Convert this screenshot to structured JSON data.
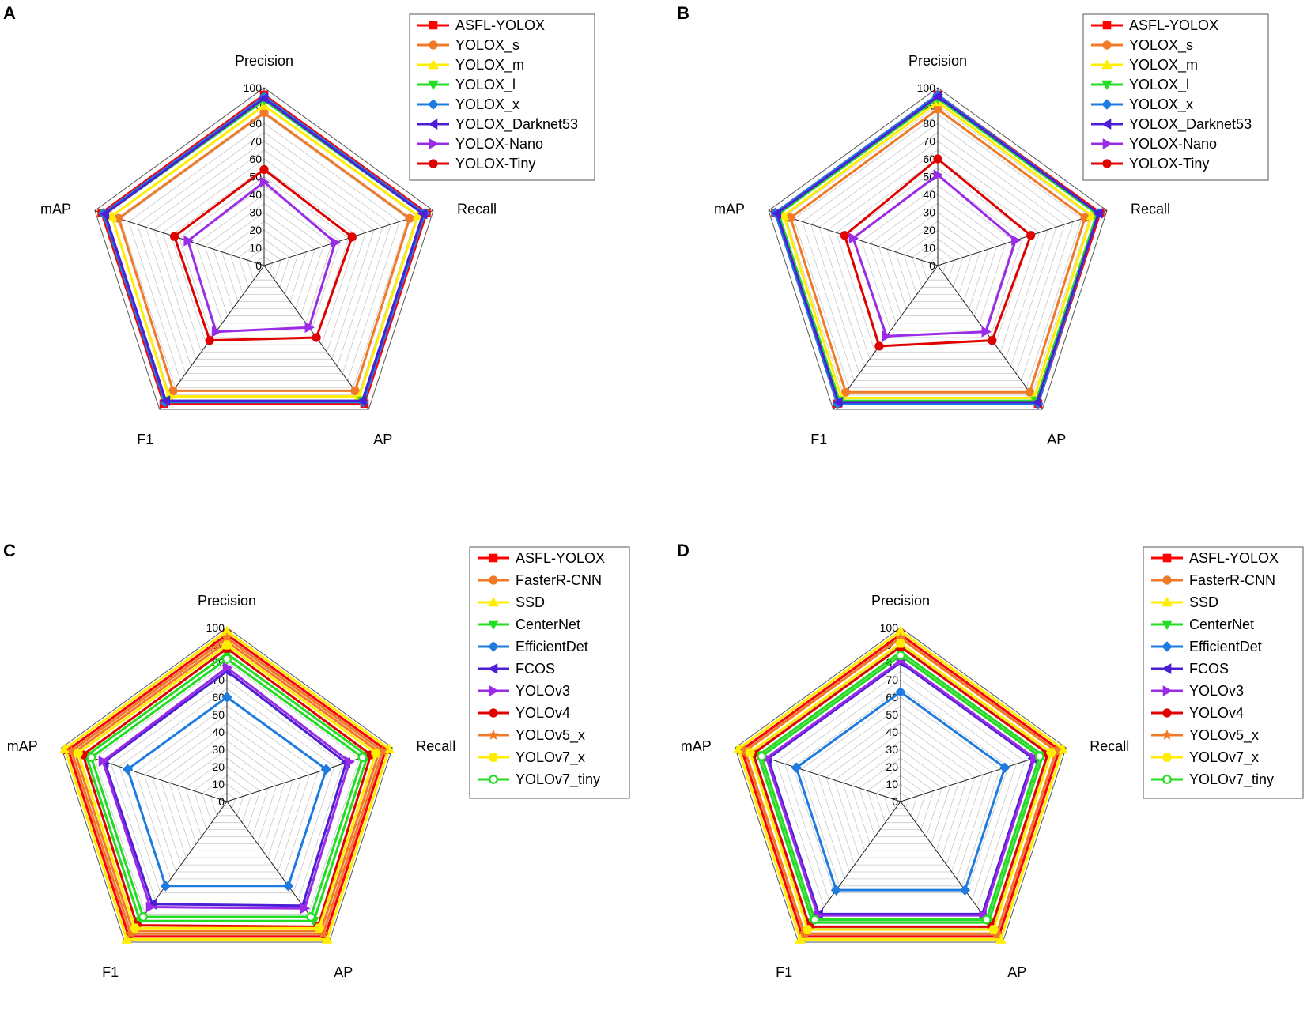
{
  "panels": [
    {
      "letter": "A"
    },
    {
      "letter": "B"
    },
    {
      "letter": "C"
    },
    {
      "letter": "D"
    }
  ],
  "chart_data": [
    {
      "panel": "A",
      "type": "radar",
      "axes": [
        "Precision",
        "Recall",
        "AP",
        "F1",
        "mAP"
      ],
      "ticks": [
        0,
        10,
        20,
        30,
        40,
        50,
        60,
        70,
        80,
        90,
        100
      ],
      "range": [
        0,
        100
      ],
      "grid": true,
      "legend_position": "top-right",
      "series": [
        {
          "name": "ASFL-YOLOX",
          "color": "#ff0000",
          "marker": "square",
          "values": [
            96,
            96,
            96,
            96,
            96
          ]
        },
        {
          "name": "YOLOX_s",
          "color": "#f07a28",
          "marker": "circle",
          "values": [
            86,
            86,
            87,
            87,
            86
          ]
        },
        {
          "name": "YOLOX_m",
          "color": "#ffee00",
          "marker": "triangle-up",
          "values": [
            90,
            91,
            91,
            91,
            90
          ]
        },
        {
          "name": "YOLOX_l",
          "color": "#22dd22",
          "marker": "triangle-down",
          "values": [
            93,
            94,
            94,
            94,
            94
          ]
        },
        {
          "name": "YOLOX_x",
          "color": "#1e7be0",
          "marker": "diamond",
          "values": [
            95,
            95,
            95,
            95,
            95
          ]
        },
        {
          "name": "YOLOX_Darknet53",
          "color": "#4b1fd6",
          "marker": "triangle-left",
          "values": [
            94,
            94,
            94,
            94,
            94
          ]
        },
        {
          "name": "YOLOX-Nano",
          "color": "#9a2be6",
          "marker": "triangle-right",
          "values": [
            47,
            42,
            43,
            46,
            45
          ]
        },
        {
          "name": "YOLOX-Tiny",
          "color": "#e00000",
          "marker": "circle",
          "values": [
            54,
            52,
            50,
            52,
            53
          ]
        }
      ]
    },
    {
      "panel": "B",
      "type": "radar",
      "axes": [
        "Precision",
        "Recall",
        "AP",
        "F1",
        "mAP"
      ],
      "ticks": [
        0,
        10,
        20,
        30,
        40,
        50,
        60,
        70,
        80,
        90,
        100
      ],
      "range": [
        0,
        100
      ],
      "grid": true,
      "legend_position": "top-right",
      "series": [
        {
          "name": "ASFL-YOLOX",
          "color": "#ff0000",
          "marker": "square",
          "values": [
            96,
            96,
            96,
            96,
            96
          ]
        },
        {
          "name": "YOLOX_s",
          "color": "#f07a28",
          "marker": "circle",
          "values": [
            88,
            87,
            88,
            88,
            87
          ]
        },
        {
          "name": "YOLOX_m",
          "color": "#ffee00",
          "marker": "triangle-up",
          "values": [
            92,
            91,
            92,
            92,
            91
          ]
        },
        {
          "name": "YOLOX_l",
          "color": "#22dd22",
          "marker": "triangle-down",
          "values": [
            94,
            94,
            94,
            94,
            94
          ]
        },
        {
          "name": "YOLOX_x",
          "color": "#1e7be0",
          "marker": "diamond",
          "values": [
            96,
            95,
            96,
            96,
            96
          ]
        },
        {
          "name": "YOLOX_Darknet53",
          "color": "#4b1fd6",
          "marker": "triangle-left",
          "values": [
            95,
            95,
            95,
            95,
            95
          ]
        },
        {
          "name": "YOLOX-Nano",
          "color": "#9a2be6",
          "marker": "triangle-right",
          "values": [
            51,
            46,
            46,
            49,
            50
          ]
        },
        {
          "name": "YOLOX-Tiny",
          "color": "#e00000",
          "marker": "circle",
          "values": [
            60,
            55,
            52,
            56,
            55
          ]
        }
      ]
    },
    {
      "panel": "C",
      "type": "radar",
      "axes": [
        "Precision",
        "Recall",
        "AP",
        "F1",
        "mAP"
      ],
      "ticks": [
        0,
        10,
        20,
        30,
        40,
        50,
        60,
        70,
        80,
        90,
        100
      ],
      "range": [
        0,
        100
      ],
      "grid": true,
      "legend_position": "top-right",
      "series": [
        {
          "name": "ASFL-YOLOX",
          "color": "#ff0000",
          "marker": "square",
          "values": [
            96,
            96,
            96,
            96,
            96
          ]
        },
        {
          "name": "FasterR-CNN",
          "color": "#f07a28",
          "marker": "circle",
          "values": [
            92,
            92,
            92,
            92,
            92
          ]
        },
        {
          "name": "SSD",
          "color": "#ffee00",
          "marker": "triangle-up",
          "values": [
            98,
            98,
            98,
            98,
            98
          ]
        },
        {
          "name": "CenterNet",
          "color": "#22dd22",
          "marker": "triangle-down",
          "values": [
            85,
            85,
            85,
            85,
            85
          ]
        },
        {
          "name": "EfficientDet",
          "color": "#1e7be0",
          "marker": "diamond",
          "values": [
            60,
            60,
            60,
            60,
            60
          ]
        },
        {
          "name": "FCOS",
          "color": "#4b1fd6",
          "marker": "triangle-left",
          "values": [
            75,
            72,
            74,
            73,
            74
          ]
        },
        {
          "name": "YOLOv3",
          "color": "#9a2be6",
          "marker": "triangle-right",
          "values": [
            77,
            74,
            76,
            75,
            75
          ]
        },
        {
          "name": "YOLOv4",
          "color": "#e00000",
          "marker": "circle",
          "values": [
            88,
            87,
            89,
            88,
            87
          ]
        },
        {
          "name": "YOLOv5_x",
          "color": "#f07a28",
          "marker": "star",
          "values": [
            94,
            94,
            94,
            94,
            94
          ]
        },
        {
          "name": "YOLOv7_x",
          "color": "#ffee00",
          "marker": "hexagon",
          "values": [
            90,
            90,
            90,
            90,
            90
          ]
        },
        {
          "name": "YOLOv7_tiny",
          "color": "#22dd22",
          "marker": "circle-open",
          "values": [
            82,
            82,
            82,
            82,
            82
          ]
        }
      ]
    },
    {
      "panel": "D",
      "type": "radar",
      "axes": [
        "Precision",
        "Recall",
        "AP",
        "F1",
        "mAP"
      ],
      "ticks": [
        0,
        10,
        20,
        30,
        40,
        50,
        60,
        70,
        80,
        90,
        100
      ],
      "range": [
        0,
        100
      ],
      "grid": true,
      "legend_position": "top-right",
      "series": [
        {
          "name": "ASFL-YOLOX",
          "color": "#ff0000",
          "marker": "square",
          "values": [
            96,
            96,
            96,
            96,
            96
          ]
        },
        {
          "name": "FasterR-CNN",
          "color": "#f07a28",
          "marker": "circle",
          "values": [
            94,
            94,
            94,
            94,
            94
          ]
        },
        {
          "name": "SSD",
          "color": "#ffee00",
          "marker": "triangle-up",
          "values": [
            98,
            98,
            98,
            98,
            98
          ]
        },
        {
          "name": "CenterNet",
          "color": "#22dd22",
          "marker": "triangle-down",
          "values": [
            86,
            86,
            86,
            86,
            86
          ]
        },
        {
          "name": "EfficientDet",
          "color": "#1e7be0",
          "marker": "diamond",
          "values": [
            63,
            63,
            63,
            63,
            63
          ]
        },
        {
          "name": "FCOS",
          "color": "#4b1fd6",
          "marker": "triangle-left",
          "values": [
            80,
            80,
            80,
            80,
            80
          ]
        },
        {
          "name": "YOLOv3",
          "color": "#9a2be6",
          "marker": "triangle-right",
          "values": [
            81,
            81,
            81,
            81,
            81
          ]
        },
        {
          "name": "YOLOv4",
          "color": "#e00000",
          "marker": "circle",
          "values": [
            89,
            89,
            89,
            89,
            89
          ]
        },
        {
          "name": "YOLOv5_x",
          "color": "#f07a28",
          "marker": "star",
          "values": [
            94,
            94,
            94,
            94,
            94
          ]
        },
        {
          "name": "YOLOv7_x",
          "color": "#ffee00",
          "marker": "hexagon",
          "values": [
            91,
            91,
            91,
            91,
            91
          ]
        },
        {
          "name": "YOLOv7_tiny",
          "color": "#22dd22",
          "marker": "circle-open",
          "values": [
            84,
            84,
            84,
            84,
            84
          ]
        }
      ]
    }
  ]
}
